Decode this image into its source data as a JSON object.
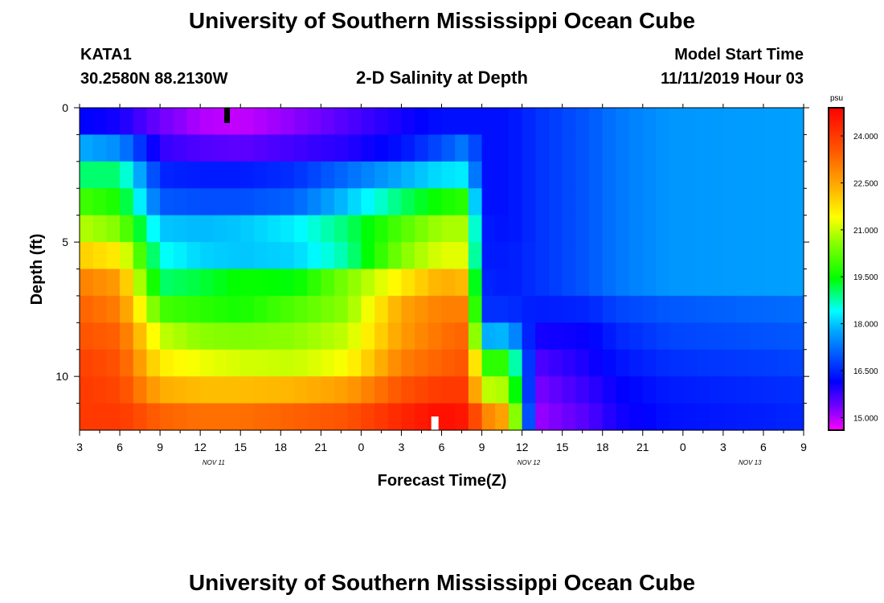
{
  "chart_data": {
    "type": "heatmap",
    "top_title": "University of Southern Mississippi Ocean Cube",
    "bottom_title": "University of Southern Mississippi Ocean Cube",
    "station": "KATA1",
    "coords": "30.2580N 88.2130W",
    "title": "2-D Salinity at Depth",
    "model_start_label": "Model Start Time",
    "model_start_value": "11/11/2019 Hour 03",
    "xlabel": "Forecast Time(Z)",
    "ylabel": "Depth (ft)",
    "x_ticks": [
      "3",
      "6",
      "9",
      "12",
      "15",
      "18",
      "21",
      "0",
      "3",
      "6",
      "9",
      "12",
      "15",
      "18",
      "21",
      "0",
      "3",
      "6",
      "9"
    ],
    "x_range_hours": [
      0,
      54
    ],
    "date_labels": [
      {
        "label": "NOV  11",
        "hour": 10
      },
      {
        "label": "NOV  12",
        "hour": 33.5
      },
      {
        "label": "NOV  13",
        "hour": 50
      }
    ],
    "y_ticks": [
      "0",
      "5",
      "10"
    ],
    "y_range_ft": [
      0,
      12
    ],
    "colorbar": {
      "unit": "psu",
      "min": 14.6,
      "max": 24.9,
      "ticks": [
        "24.000",
        "22.500",
        "21.000",
        "19.500",
        "18.000",
        "16.500",
        "15.000"
      ],
      "tick_values": [
        24.0,
        22.5,
        21.0,
        19.5,
        18.0,
        16.5,
        15.0
      ]
    },
    "time_step_hours": 1,
    "depth_layers_ft": [
      0.5,
      1.5,
      2.5,
      3.5,
      4.5,
      5.5,
      6.5,
      7.5,
      8.5,
      9.5,
      10.5,
      11.5
    ],
    "salinity_profiles": {
      "comment": "per-layer salinity (psu) at key forecast hours; values interpolated between keys",
      "key_hours": [
        0,
        3,
        6,
        9,
        12,
        16,
        20,
        24,
        27,
        29,
        30,
        32,
        34,
        38,
        40,
        44,
        54
      ],
      "layers": [
        [
          16.2,
          16.0,
          15.4,
          15.0,
          14.9,
          15.2,
          15.6,
          16.0,
          16.3,
          16.3,
          16.3,
          16.3,
          16.6,
          17.0,
          17.3,
          17.6,
          17.7
        ],
        [
          17.8,
          17.5,
          15.8,
          15.6,
          15.5,
          15.7,
          15.9,
          16.3,
          16.9,
          17.4,
          16.3,
          16.3,
          16.6,
          17.0,
          17.3,
          17.6,
          17.7
        ],
        [
          19.0,
          19.0,
          16.5,
          16.4,
          16.4,
          16.6,
          17.2,
          17.8,
          18.2,
          18.3,
          16.3,
          16.3,
          16.6,
          17.0,
          17.3,
          17.6,
          17.7
        ],
        [
          20.0,
          19.6,
          17.0,
          16.9,
          16.9,
          17.1,
          18.0,
          19.0,
          19.6,
          19.8,
          16.3,
          16.3,
          16.6,
          17.0,
          17.3,
          17.6,
          17.7
        ],
        [
          20.9,
          20.5,
          18.0,
          17.9,
          18.0,
          18.3,
          19.0,
          20.1,
          20.8,
          20.8,
          16.4,
          16.3,
          16.6,
          17.0,
          17.3,
          17.6,
          17.7
        ],
        [
          22.0,
          21.6,
          18.5,
          18.1,
          18.0,
          18.1,
          18.8,
          20.5,
          21.2,
          21.2,
          16.4,
          16.4,
          16.6,
          17.0,
          17.3,
          17.6,
          17.7
        ],
        [
          23.0,
          22.6,
          19.0,
          19.2,
          19.5,
          19.4,
          20.5,
          21.6,
          22.4,
          22.2,
          16.5,
          16.4,
          16.6,
          17.0,
          17.3,
          17.6,
          17.7
        ],
        [
          23.4,
          23.0,
          20.0,
          19.8,
          19.6,
          20.1,
          20.6,
          22.5,
          23.0,
          23.0,
          16.6,
          16.6,
          16.4,
          16.5,
          16.8,
          17.0,
          17.2
        ],
        [
          23.6,
          23.4,
          21.0,
          20.6,
          20.5,
          20.6,
          21.0,
          22.6,
          23.2,
          23.4,
          17.8,
          17.9,
          16.0,
          16.1,
          16.5,
          16.8,
          17.0
        ],
        [
          23.9,
          23.6,
          21.6,
          21.3,
          21.1,
          21.0,
          21.4,
          23.0,
          23.4,
          23.6,
          19.8,
          19.8,
          15.6,
          16.0,
          16.3,
          16.6,
          16.8
        ],
        [
          24.0,
          23.8,
          22.4,
          22.2,
          22.2,
          22.3,
          22.6,
          23.6,
          24.0,
          24.0,
          21.0,
          20.8,
          15.3,
          15.8,
          16.1,
          16.4,
          16.6
        ],
        [
          24.0,
          24.0,
          23.4,
          23.2,
          23.2,
          23.4,
          23.6,
          24.3,
          24.7,
          24.5,
          23.0,
          22.4,
          15.1,
          15.6,
          16.0,
          16.3,
          16.5
        ]
      ]
    },
    "markers": [
      {
        "type": "black",
        "hour": 11,
        "depth_ft": 0.3
      },
      {
        "type": "white",
        "hour": 26.5,
        "depth_ft": 11.75
      }
    ]
  }
}
